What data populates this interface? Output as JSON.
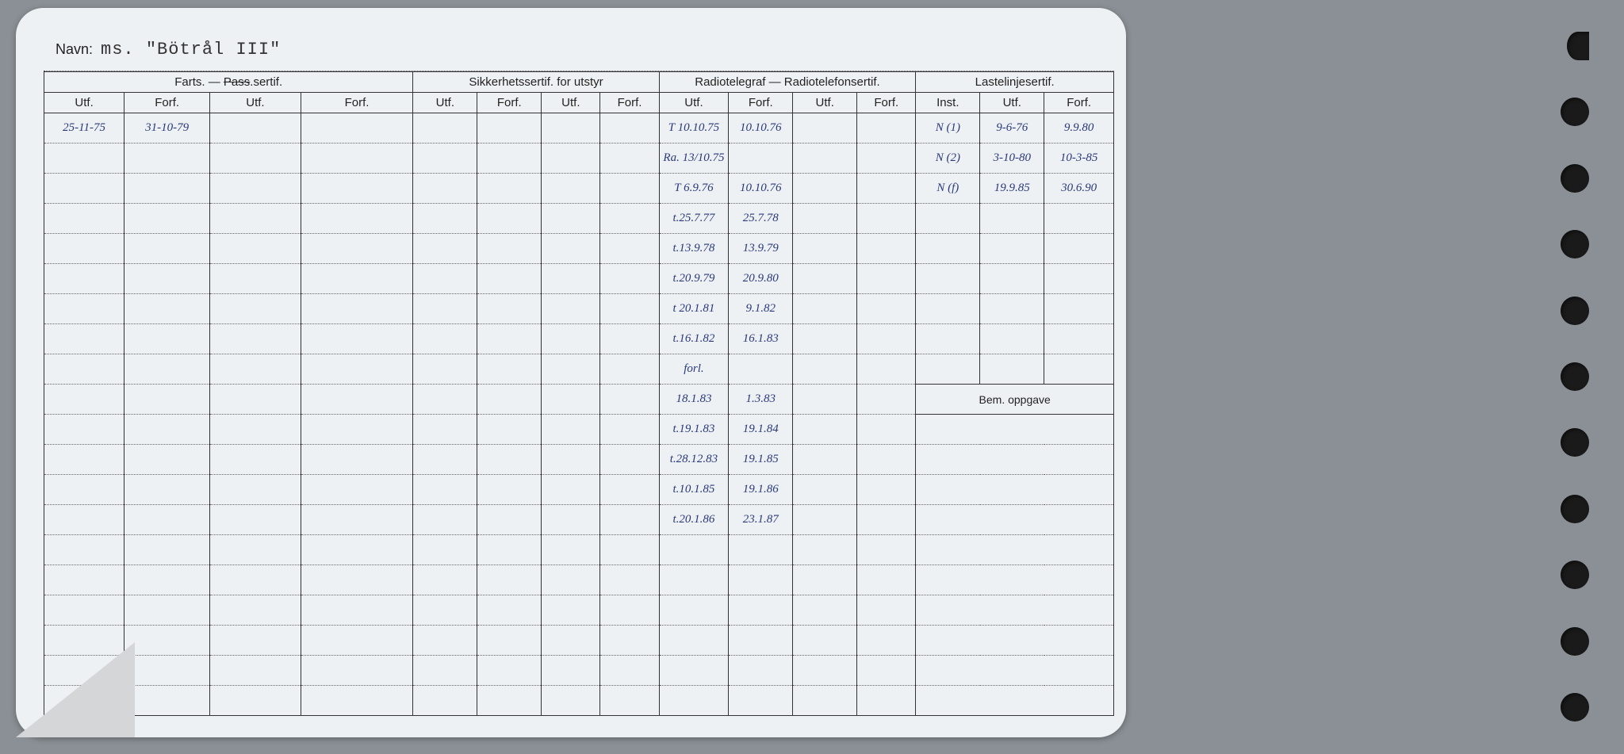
{
  "colors": {
    "page_bg": "#8a9095",
    "card_bg": "#eef1f4",
    "rule": "#333333",
    "dotted": "#666666",
    "ink_print": "#222222",
    "ink_hand": "#2a3a7a",
    "fold": "#d4d6d8",
    "hole": "#1a1a1a"
  },
  "navn": {
    "label": "Navn:",
    "value": "ms. \"Bötrål III\""
  },
  "headers": {
    "groups": {
      "farts": "Farts. — Pass.sertif.",
      "sikk": "Sikkerhetssertif. for utstyr",
      "radio": "Radiotelegraf — Radiotelefonsertif.",
      "laste": "Lastelinjesertif."
    },
    "sub": {
      "utf": "Utf.",
      "forf": "Forf.",
      "inst": "Inst."
    },
    "bem": "Bem. oppgave"
  },
  "rows_count": 20,
  "bem_row_index": 9,
  "data": {
    "farts": {
      "0": {
        "utf1": "25-11-75",
        "forf1": "31-10-79"
      }
    },
    "radio": {
      "0": {
        "utf1": "T 10.10.75",
        "forf1": "10.10.76"
      },
      "1": {
        "utf1": "Ra. 13/10.75"
      },
      "2": {
        "utf1": "T 6.9.76",
        "forf1": "10.10.76"
      },
      "3": {
        "utf1": "t.25.7.77",
        "forf1": "25.7.78"
      },
      "4": {
        "utf1": "t.13.9.78",
        "forf1": "13.9.79"
      },
      "5": {
        "utf1": "t.20.9.79",
        "forf1": "20.9.80"
      },
      "6": {
        "utf1": "t 20.1.81",
        "forf1": "9.1.82"
      },
      "7": {
        "utf1": "t.16.1.82",
        "forf1": "16.1.83"
      },
      "8": {
        "utf1": "forl."
      },
      "9": {
        "utf1": "18.1.83",
        "forf1": "1.3.83"
      },
      "10": {
        "utf1": "t.19.1.83",
        "forf1": "19.1.84"
      },
      "11": {
        "utf1": "t.28.12.83",
        "forf1": "19.1.85"
      },
      "12": {
        "utf1": "t.10.1.85",
        "forf1": "19.1.86"
      },
      "13": {
        "utf1": "t.20.1.86",
        "forf1": "23.1.87"
      }
    },
    "laste": {
      "0": {
        "inst": "N (1)",
        "utf": "9-6-76",
        "forf": "9.9.80"
      },
      "1": {
        "inst": "N (2)",
        "utf": "3-10-80",
        "forf": "10-3-85"
      },
      "2": {
        "inst": "N (f)",
        "utf": "19.9.85",
        "forf": "30.6.90"
      }
    }
  },
  "holes_count": 11
}
